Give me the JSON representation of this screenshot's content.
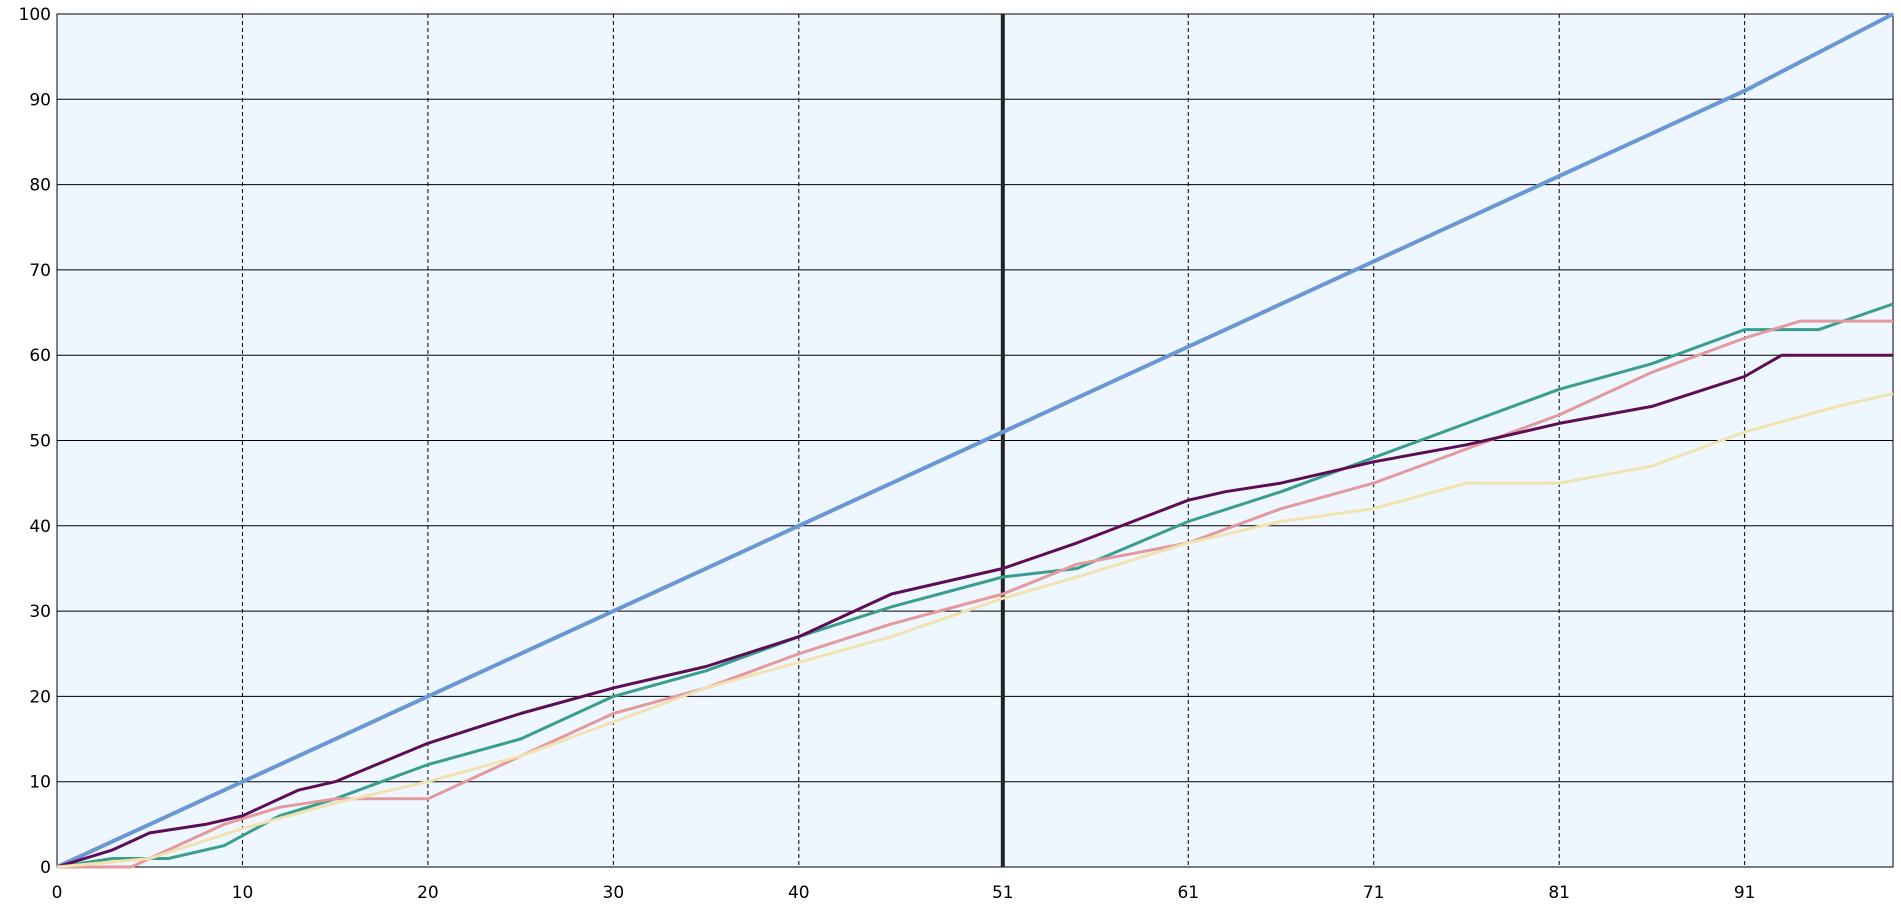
{
  "chart_data": {
    "type": "line",
    "title": "",
    "xlabel": "",
    "ylabel": "",
    "xlim": [
      0,
      99
    ],
    "ylim": [
      0,
      100
    ],
    "grid": true,
    "x_ticks": [
      0,
      10,
      20,
      30,
      40,
      51,
      61,
      71,
      81,
      91
    ],
    "y_ticks": [
      0,
      10,
      20,
      30,
      40,
      50,
      60,
      70,
      80,
      90,
      100
    ],
    "x_tick_labels": [
      "0",
      "10",
      "20",
      "30",
      "40",
      "51",
      "61",
      "71",
      "81",
      "91"
    ],
    "y_tick_labels": [
      "0",
      "10",
      "20",
      "30",
      "40",
      "50",
      "60",
      "70",
      "80",
      "90",
      "100"
    ],
    "highlight_x": 51,
    "colors": {
      "background": "#eef7ff",
      "grid": "#000000",
      "series": [
        "#6b96d4",
        "#3a9e8e",
        "#e39a9f",
        "#5c0d56",
        "#f2e2b0"
      ]
    },
    "series": [
      {
        "x": [
          0,
          10,
          20,
          30,
          40,
          51,
          61,
          71,
          81,
          91,
          99
        ],
        "values": [
          0,
          10,
          20,
          30,
          40,
          51,
          61,
          71,
          81,
          91,
          100
        ]
      },
      {
        "x": [
          0,
          3,
          6,
          9,
          12,
          15,
          20,
          25,
          30,
          35,
          40,
          45,
          51,
          55,
          61,
          66,
          71,
          76,
          81,
          86,
          91,
          95,
          99
        ],
        "values": [
          0,
          1,
          1,
          2.5,
          6,
          8,
          12,
          15,
          20,
          23,
          27,
          30.5,
          34,
          35,
          40.5,
          44,
          48,
          52,
          56,
          59,
          63,
          63,
          66
        ]
      },
      {
        "x": [
          0,
          4,
          6,
          9,
          12,
          15,
          20,
          23,
          30,
          35,
          40,
          45,
          51,
          55,
          61,
          66,
          71,
          76,
          81,
          86,
          91,
          94,
          99
        ],
        "values": [
          0,
          0,
          2,
          5,
          7,
          8,
          8,
          11,
          18,
          21,
          25,
          28.5,
          32,
          35.5,
          38,
          42,
          45,
          49,
          53,
          58,
          62,
          64,
          64
        ]
      },
      {
        "x": [
          0,
          3,
          5,
          8,
          10,
          13,
          15,
          20,
          25,
          30,
          35,
          40,
          45,
          51,
          55,
          61,
          63,
          66,
          71,
          76,
          81,
          86,
          91,
          93,
          99
        ],
        "values": [
          0,
          2,
          4,
          5,
          6,
          9,
          10,
          14.5,
          18,
          21,
          23.5,
          27,
          32,
          35,
          38,
          43,
          44,
          45,
          47.5,
          49.5,
          52,
          54,
          57.5,
          60,
          60
        ]
      },
      {
        "x": [
          0,
          5,
          10,
          15,
          20,
          25,
          30,
          35,
          40,
          45,
          51,
          55,
          61,
          66,
          71,
          76,
          81,
          86,
          91,
          96,
          99
        ],
        "values": [
          0,
          1,
          4.5,
          7.5,
          10,
          13,
          17,
          21,
          24,
          27,
          31.5,
          34,
          38,
          40.5,
          42,
          45,
          45,
          47,
          51,
          54,
          55.5
        ]
      }
    ]
  }
}
